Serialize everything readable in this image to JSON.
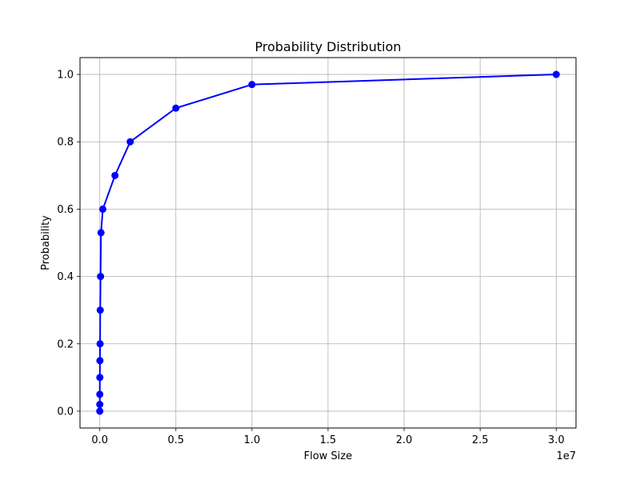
{
  "chart_data": {
    "type": "line",
    "title": "Probability Distribution",
    "xlabel": "Flow Size",
    "ylabel": "Probability",
    "x_offset_label": "1e7",
    "xlim": [
      -1300000,
      31300000
    ],
    "ylim": [
      -0.05,
      1.05
    ],
    "x_ticks": [
      0,
      5000000,
      10000000,
      15000000,
      20000000,
      25000000,
      30000000
    ],
    "x_tick_labels": [
      "0.0",
      "0.5",
      "1.0",
      "1.5",
      "2.0",
      "2.5",
      "3.0"
    ],
    "y_ticks": [
      0,
      0.2,
      0.4,
      0.6,
      0.8,
      1.0
    ],
    "y_tick_labels": [
      "0.0",
      "0.2",
      "0.4",
      "0.6",
      "0.8",
      "1.0"
    ],
    "grid": true,
    "color": "#0000ff",
    "marker": "circle",
    "series": [
      {
        "x": [
          0,
          100,
          1000,
          5000,
          10000,
          20000,
          30000,
          50000,
          80000,
          200000,
          1000000,
          2000000,
          5000000,
          10000000,
          30000000
        ],
        "y": [
          0,
          0.02,
          0.05,
          0.1,
          0.15,
          0.2,
          0.3,
          0.4,
          0.53,
          0.6,
          0.7,
          0.8,
          0.9,
          0.97,
          1.0
        ]
      }
    ]
  }
}
